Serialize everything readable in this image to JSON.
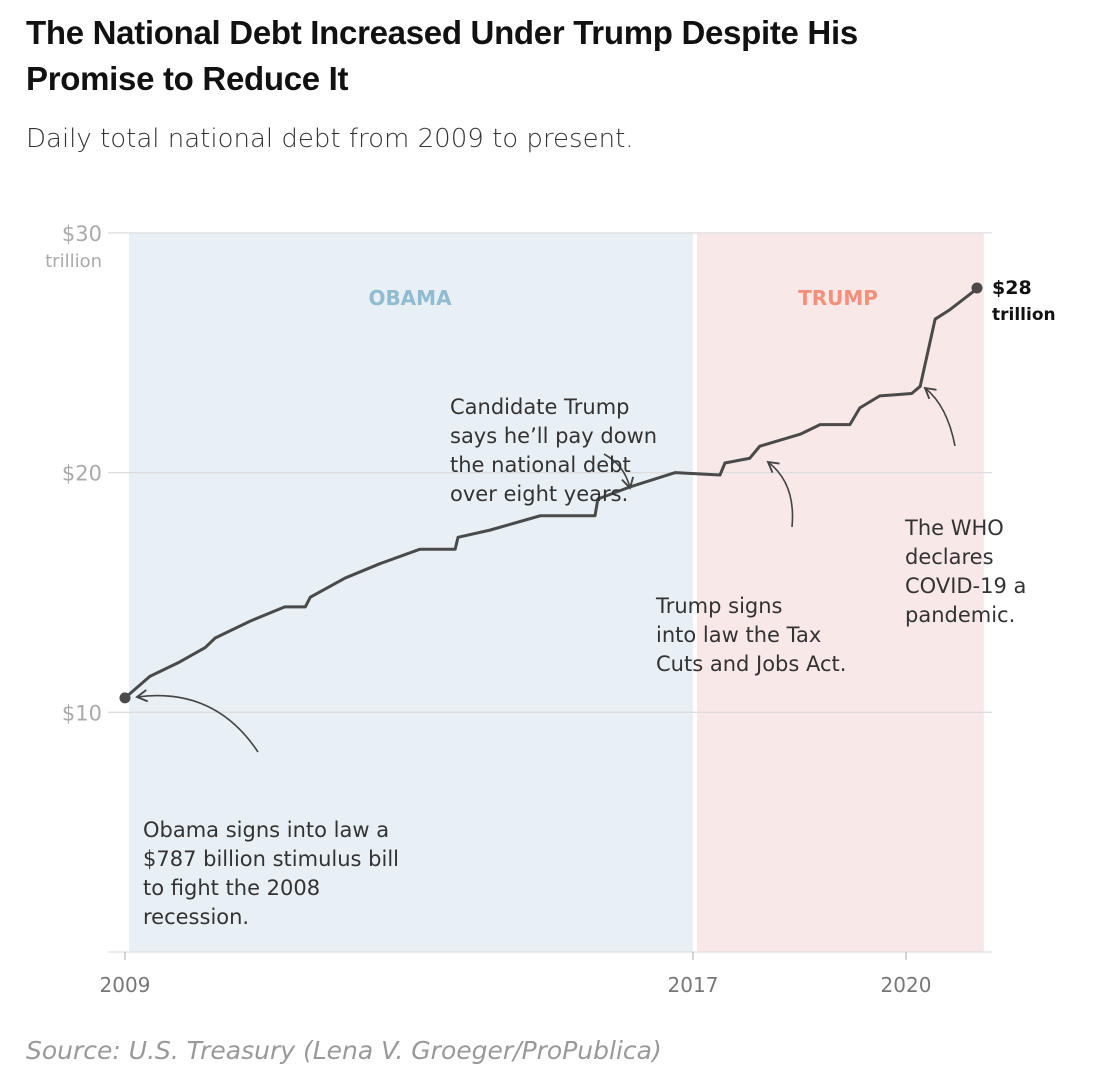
{
  "header": {
    "title_lines": [
      "The National Debt Increased Under Trump Despite His",
      "Promise to Reduce It"
    ],
    "subtitle": "Daily total national debt from 2009 to present."
  },
  "source": "Source: U.S. Treasury (Lena V. Groeger/ProPublica)",
  "colors": {
    "line": "#4a4a4a",
    "obama_bg": "#e8eff5",
    "trump_bg": "#f9e8e8",
    "obama_label": "#8fbcd1",
    "trump_label": "#f4907a",
    "grid": "#dddddd",
    "tick": "#aaaaaa"
  },
  "chart_data": {
    "type": "line",
    "title": "The National Debt Increased Under Trump Despite His Promise to Reduce It",
    "xlabel": "",
    "ylabel": "",
    "ylim": [
      0,
      30
    ],
    "grid": true,
    "x_ticks": [
      {
        "value": 2009,
        "label": "2009"
      },
      {
        "value": 2017,
        "label": "2017"
      },
      {
        "value": 2020,
        "label": "2020"
      }
    ],
    "y_ticks": [
      {
        "value": 30,
        "label": "$30",
        "sublabel": "trillion"
      },
      {
        "value": 20,
        "label": "$20"
      },
      {
        "value": 10,
        "label": "$10"
      }
    ],
    "regions": [
      {
        "label": "OBAMA",
        "from": 2009,
        "to": 2017,
        "color": "#e8eff5",
        "label_color": "#8fbcd1"
      },
      {
        "label": "TRUMP",
        "from": 2017,
        "to": 2021.04,
        "color": "#f9e8e8",
        "label_color": "#f4907a"
      }
    ],
    "series": [
      {
        "x": [
          2009.0,
          2009.35,
          2009.77,
          2010.13,
          2010.27,
          2010.76,
          2011.25,
          2011.54,
          2011.61,
          2012.1,
          2012.59,
          2013.15,
          2013.65,
          2013.69,
          2014.14,
          2014.85,
          2015.62,
          2015.66,
          2016.11,
          2016.75,
          2017.38,
          2017.45,
          2017.8,
          2017.94,
          2018.51,
          2018.79,
          2019.21,
          2019.35,
          2019.63,
          2020.08,
          2020.2,
          2020.41,
          2020.62,
          2020.97,
          2021.0
        ],
        "y": [
          10.6,
          11.5,
          12.1,
          12.7,
          13.1,
          13.8,
          14.4,
          14.4,
          14.8,
          15.6,
          16.2,
          16.8,
          16.8,
          17.3,
          17.6,
          18.2,
          18.2,
          18.9,
          19.4,
          20.0,
          19.9,
          20.4,
          20.6,
          21.1,
          21.6,
          22.0,
          22.0,
          22.7,
          23.2,
          23.3,
          23.6,
          26.4,
          26.8,
          27.6,
          27.7
        ]
      }
    ],
    "end_label": [
      "$28",
      "trillion"
    ],
    "annotations": [
      {
        "lines": [
          "Obama signs into law a",
          "$787 billion stimulus bill",
          "to fight the 2008",
          "recession."
        ],
        "x": 2009.0,
        "y": 10.6
      },
      {
        "lines": [
          "Candidate Trump",
          "says he’ll pay down",
          "the national debt",
          "over eight years."
        ],
        "x": 2016.3,
        "y": 19.4
      },
      {
        "lines": [
          "Trump signs",
          "into law the Tax",
          "Cuts and Jobs Act."
        ],
        "x": 2017.9,
        "y": 20.6
      },
      {
        "lines": [
          "The WHO",
          "declares",
          "COVID-19 a",
          "pandemic."
        ],
        "x": 2020.3,
        "y": 24.0
      }
    ]
  }
}
